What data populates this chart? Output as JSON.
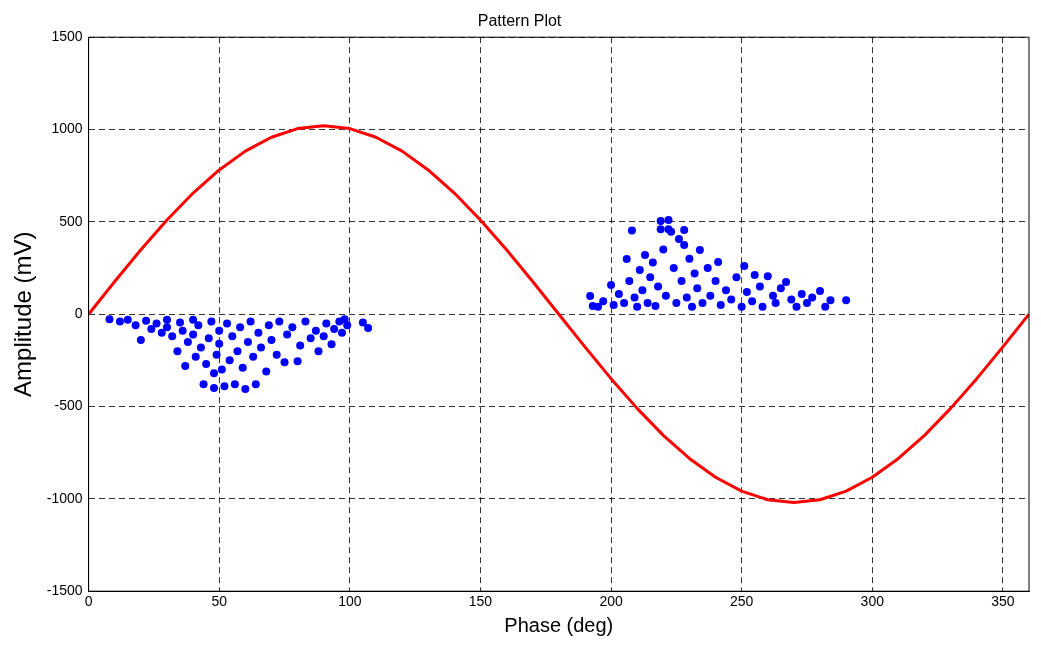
{
  "chart_data": {
    "type": "scatter",
    "title": "Pattern Plot",
    "xlabel": "Phase (deg)",
    "ylabel": "Amplitude (mV)",
    "xlim": [
      0,
      360
    ],
    "xticks": [
      0,
      50,
      100,
      150,
      200,
      250,
      300,
      350
    ],
    "ylim": [
      -1500,
      1500
    ],
    "yticks": [
      -1500,
      -1000,
      -500,
      0,
      500,
      1000,
      1500
    ],
    "grid": true,
    "line_style": "dashed",
    "legend": false,
    "series": [
      {
        "type": "scatter",
        "color": "#0000ff",
        "marker": "circle",
        "x": [
          8,
          12,
          15,
          18,
          20,
          22,
          24,
          26,
          28,
          30,
          30,
          32,
          34,
          35,
          36,
          37,
          38,
          40,
          40,
          41,
          42,
          43,
          44,
          45,
          46,
          47,
          48,
          48,
          49,
          50,
          50,
          51,
          52,
          53,
          54,
          55,
          56,
          57,
          58,
          59,
          60,
          61,
          62,
          63,
          64,
          65,
          66,
          68,
          69,
          70,
          72,
          73,
          75,
          76,
          78,
          80,
          81,
          83,
          85,
          87,
          88,
          90,
          91,
          93,
          94,
          96,
          97,
          98,
          99,
          105,
          107,
          192,
          193,
          195,
          197,
          200,
          201,
          203,
          205,
          206,
          207,
          208,
          209,
          210,
          211,
          212,
          213,
          214,
          215,
          216,
          217,
          218,
          219,
          219,
          220,
          221,
          222,
          222,
          223,
          224,
          225,
          226,
          227,
          228,
          228,
          229,
          230,
          231,
          232,
          233,
          234,
          235,
          237,
          238,
          240,
          241,
          242,
          244,
          246,
          248,
          250,
          251,
          252,
          254,
          255,
          257,
          258,
          260,
          262,
          263,
          265,
          267,
          269,
          271,
          273,
          275,
          277,
          280,
          282,
          284,
          290
        ],
        "values": [
          -27,
          -40,
          -30,
          -60,
          -140,
          -35,
          -80,
          -50,
          -100,
          -30,
          -70,
          -120,
          -200,
          -45,
          -90,
          -280,
          -150,
          -30,
          -110,
          -230,
          -60,
          -180,
          -380,
          -270,
          -130,
          -40,
          -400,
          -320,
          -220,
          -90,
          -160,
          -300,
          -390,
          -50,
          -250,
          -120,
          -380,
          -200,
          -70,
          -290,
          -405,
          -150,
          -40,
          -230,
          -380,
          -100,
          -180,
          -310,
          -60,
          -140,
          -220,
          -40,
          -260,
          -110,
          -70,
          -255,
          -170,
          -40,
          -130,
          -90,
          -200,
          -120,
          -50,
          -163,
          -80,
          -40,
          -100,
          -27,
          -60,
          -45,
          -75,
          98,
          45,
          40,
          70,
          158,
          50,
          110,
          60,
          299,
          180,
          453,
          90,
          40,
          240,
          130,
          320,
          60,
          200,
          280,
          45,
          150,
          505,
          460,
          350,
          100,
          510,
          460,
          446,
          250,
          60,
          407,
          180,
          456,
          375,
          90,
          300,
          40,
          220,
          140,
          348,
          60,
          250,
          100,
          180,
          283,
          50,
          130,
          80,
          200,
          40,
          261,
          120,
          70,
          212,
          150,
          40,
          206,
          100,
          60,
          141,
          174,
          80,
          40,
          110,
          60,
          90,
          125,
          40,
          76,
          76
        ]
      },
      {
        "type": "line",
        "color": "#ff0000",
        "marker": "none",
        "line_style": "solid",
        "x": [
          0,
          10,
          20,
          30,
          40,
          50,
          60,
          70,
          80,
          90,
          100,
          110,
          120,
          130,
          140,
          150,
          160,
          170,
          180,
          190,
          200,
          210,
          220,
          230,
          240,
          250,
          260,
          270,
          280,
          290,
          300,
          310,
          320,
          330,
          340,
          350,
          360
        ],
        "values": [
          0,
          177,
          349,
          510,
          656,
          781,
          883,
          958,
          1005,
          1020,
          1005,
          958,
          883,
          781,
          656,
          510,
          349,
          177,
          0,
          -177,
          -349,
          -510,
          -656,
          -781,
          -883,
          -958,
          -1005,
          -1020,
          -1005,
          -958,
          -883,
          -781,
          -656,
          -510,
          -349,
          -177,
          0
        ]
      }
    ]
  }
}
